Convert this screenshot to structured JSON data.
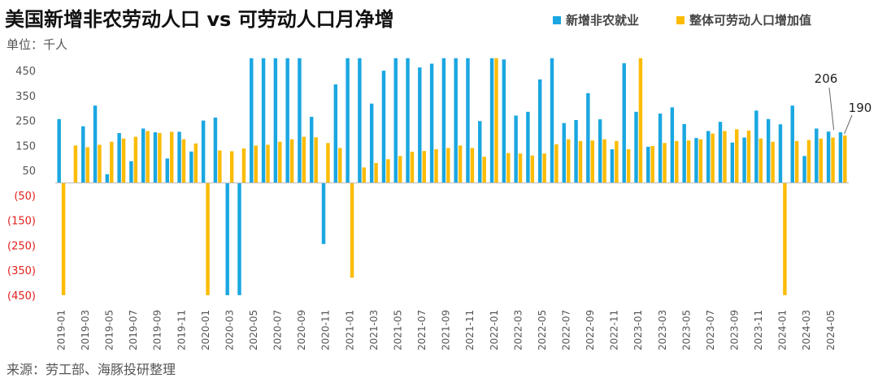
{
  "title": "美国新增非农劳动人口 vs 可劳动人口月净增",
  "unit": "单位：千人",
  "source": "来源：劳工部、海豚投研整理",
  "chart_data": {
    "type": "bar",
    "categories": [
      "2019-01",
      "2019-02",
      "2019-03",
      "2019-04",
      "2019-05",
      "2019-06",
      "2019-07",
      "2019-08",
      "2019-09",
      "2019-10",
      "2019-11",
      "2019-12",
      "2020-01",
      "2020-02",
      "2020-03",
      "2020-04",
      "2020-05",
      "2020-06",
      "2020-07",
      "2020-08",
      "2020-09",
      "2020-10",
      "2020-11",
      "2020-12",
      "2021-01",
      "2021-02",
      "2021-03",
      "2021-04",
      "2021-05",
      "2021-06",
      "2021-07",
      "2021-08",
      "2021-09",
      "2021-10",
      "2021-11",
      "2021-12",
      "2022-01",
      "2022-02",
      "2022-03",
      "2022-04",
      "2022-05",
      "2022-06",
      "2022-07",
      "2022-08",
      "2022-09",
      "2022-10",
      "2022-11",
      "2022-12",
      "2023-01",
      "2023-02",
      "2023-03",
      "2023-04",
      "2023-05",
      "2023-06",
      "2023-07",
      "2023-08",
      "2023-09",
      "2023-10",
      "2023-11",
      "2023-12",
      "2024-01",
      "2024-02",
      "2024-03",
      "2024-04",
      "2024-05",
      "2024-06"
    ],
    "xtick_labels": [
      "2019-01",
      "2019-03",
      "2019-05",
      "2019-07",
      "2019-09",
      "2019-11",
      "2020-01",
      "2020-03",
      "2020-05",
      "2020-07",
      "2020-09",
      "2020-11",
      "2021-01",
      "2021-03",
      "2021-05",
      "2021-07",
      "2021-09",
      "2021-11",
      "2022-01",
      "2022-03",
      "2022-05",
      "2022-07",
      "2022-09",
      "2022-11",
      "2023-01",
      "2023-03",
      "2023-05",
      "2023-07",
      "2023-09",
      "2023-11",
      "2024-01",
      "2024-03",
      "2024-05"
    ],
    "series": [
      {
        "name": "新增非农就业",
        "color": "#1AA7E1",
        "values": [
          256,
          1,
          227,
          310,
          35,
          200,
          87,
          218,
          203,
          98,
          205,
          126,
          250,
          262,
          -450,
          -450,
          500,
          500,
          500,
          500,
          500,
          265,
          -245,
          395,
          500,
          500,
          318,
          450,
          500,
          500,
          463,
          478,
          500,
          500,
          500,
          248,
          500,
          495,
          270,
          285,
          415,
          500,
          240,
          252,
          360,
          255,
          135,
          480,
          285,
          145,
          278,
          303,
          236,
          180,
          208,
          245,
          162,
          182,
          290,
          256,
          235,
          310,
          108,
          218,
          206,
          203
        ]
      },
      {
        "name": "整体可劳动人口增加值",
        "color": "#FBBC05",
        "values": [
          -450,
          150,
          143,
          153,
          165,
          178,
          185,
          208,
          200,
          205,
          175,
          158,
          -450,
          130,
          127,
          138,
          150,
          153,
          165,
          175,
          185,
          183,
          160,
          140,
          -380,
          62,
          80,
          95,
          108,
          125,
          128,
          135,
          140,
          150,
          140,
          105,
          500,
          120,
          118,
          110,
          118,
          155,
          175,
          168,
          170,
          175,
          168,
          135,
          500,
          148,
          160,
          168,
          170,
          175,
          198,
          208,
          215,
          210,
          178,
          165,
          -450,
          168,
          172,
          178,
          182,
          190
        ]
      }
    ],
    "yticks": [
      450,
      350,
      250,
      150,
      50,
      -50,
      -150,
      -250,
      -350,
      -450
    ],
    "ytick_labels": [
      "450",
      "350",
      "250",
      "150",
      "50",
      "(50)",
      "(150)",
      "(250)",
      "(350)",
      "(450)"
    ],
    "ylim": [
      -450,
      500
    ],
    "annotations": [
      {
        "text": "206",
        "series": 0,
        "index": 64
      },
      {
        "text": "190",
        "series": 1,
        "index": 65
      }
    ],
    "legend_position": "top-right",
    "grid": false
  }
}
